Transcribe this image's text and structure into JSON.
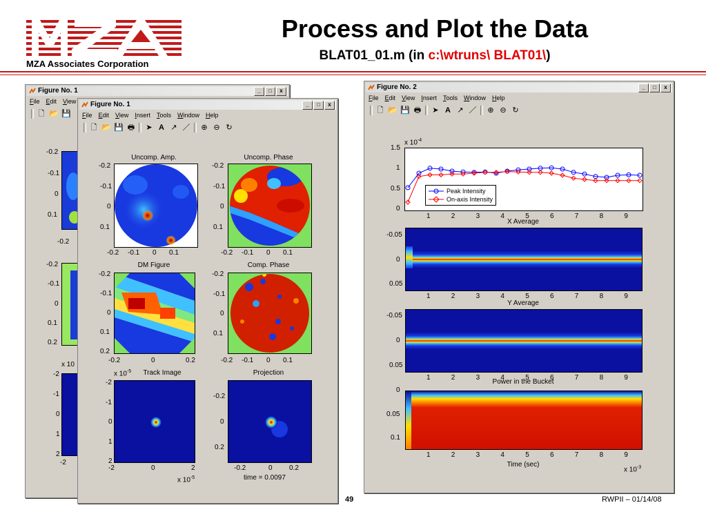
{
  "header": {
    "corp_name": "MZA Associates Corporation",
    "title": "Process and Plot the Data",
    "subtitle_prefix": "BLAT01_01.m (in ",
    "subtitle_path": "c:\\wtruns\\ BLAT01\\",
    "subtitle_suffix": ")",
    "logo_alt": "MZA",
    "logo_color": "#c01a1a"
  },
  "footer": {
    "page_number": "49",
    "date": "RWPII – 01/14/08"
  },
  "windows": {
    "fig1_back": {
      "title": "Figure No. 1"
    },
    "fig1_front": {
      "title": "Figure No. 1"
    },
    "fig2": {
      "title": "Figure No. 2"
    }
  },
  "menus": {
    "fig1_back": [
      "File",
      "Edit",
      "View"
    ],
    "full": [
      "File",
      "Edit",
      "View",
      "Insert",
      "Tools",
      "Window",
      "Help"
    ]
  },
  "window_controls": {
    "minimize": "_",
    "restore": "□",
    "close": "x"
  },
  "toolbar_icons": [
    "new-file-icon",
    "open-folder-icon",
    "save-icon",
    "print-icon",
    "pointer-icon",
    "text-icon",
    "arrow-icon",
    "line-icon",
    "zoom-in-icon",
    "zoom-out-icon",
    "rotate-icon"
  ],
  "fig1": {
    "plots": {
      "uncomp_amp": {
        "title": "Uncomp. Amp.",
        "yticks": [
          "-0.2",
          "-0.1",
          "0",
          "0.1"
        ],
        "xticks": [
          "-0.2",
          "-0.1",
          "0",
          "0.1"
        ]
      },
      "uncomp_phase": {
        "title": "Uncomp. Phase",
        "yticks": [
          "-0.2",
          "-0.1",
          "0",
          "0.1"
        ],
        "xticks": [
          "-0.2",
          "-0.1",
          "0",
          "0.1"
        ]
      },
      "dm_figure": {
        "title": "DM Figure",
        "yticks": [
          "-0.2",
          "-0.1",
          "0",
          "0.1",
          "0.2"
        ],
        "xticks": [
          "-0.2",
          "0",
          "0.2"
        ]
      },
      "comp_phase": {
        "title": "Comp. Phase",
        "yticks": [
          "-0.2",
          "-0.1",
          "0",
          "0.1"
        ],
        "xticks": [
          "-0.2",
          "-0.1",
          "0",
          "0.1"
        ]
      },
      "track_image": {
        "title": "Track Image",
        "exp_label": "x 10",
        "exp": "-5",
        "yticks": [
          "-2",
          "-1",
          "0",
          "1",
          "2"
        ],
        "xticks": [
          "-2",
          "0",
          "2"
        ],
        "xexp_label": "x 10",
        "xexp": "-5"
      },
      "projection": {
        "title": "Projection",
        "yticks": [
          "-0.2",
          "0",
          "0.2"
        ],
        "xticks": [
          "-0.2",
          "0",
          "0.2"
        ],
        "xlabel": "time = 0.0097"
      }
    },
    "back_window_ticks": {
      "col1": [
        "-0.2",
        "-0.1",
        "0",
        "0.1"
      ],
      "row_bottom": "-0.2",
      "col2": [
        "-0.2",
        "-0.1",
        "0",
        "0.1",
        "0.2"
      ],
      "exp_label": "x 10",
      "col3": [
        "-2",
        "-1",
        "0",
        "1",
        "2"
      ],
      "bottom": "-2"
    }
  },
  "fig2": {
    "xticks": [
      "1",
      "2",
      "3",
      "4",
      "5",
      "6",
      "7",
      "8",
      "9"
    ],
    "x_exp": "x 10",
    "x_exp_power": "-3",
    "top_plot": {
      "y_exp": "x 10",
      "y_exp_power": "-4",
      "yticks": [
        "1.5",
        "1",
        "0.5",
        "0"
      ],
      "legend": [
        "Peak Intensity",
        "On-axis Intensity"
      ],
      "series_colors": [
        "#0000ff",
        "#ff0000"
      ]
    },
    "x_average": {
      "title": "X Average",
      "yticks": [
        "-0.05",
        "0",
        "0.05"
      ]
    },
    "y_average": {
      "title": "Y Average",
      "yticks": [
        "-0.05",
        "0",
        "0.05"
      ]
    },
    "power_bucket": {
      "title": "Power in the Bucket",
      "yticks": [
        "0",
        "0.05",
        "0.1"
      ],
      "xlabel": "Time (sec)"
    }
  }
}
